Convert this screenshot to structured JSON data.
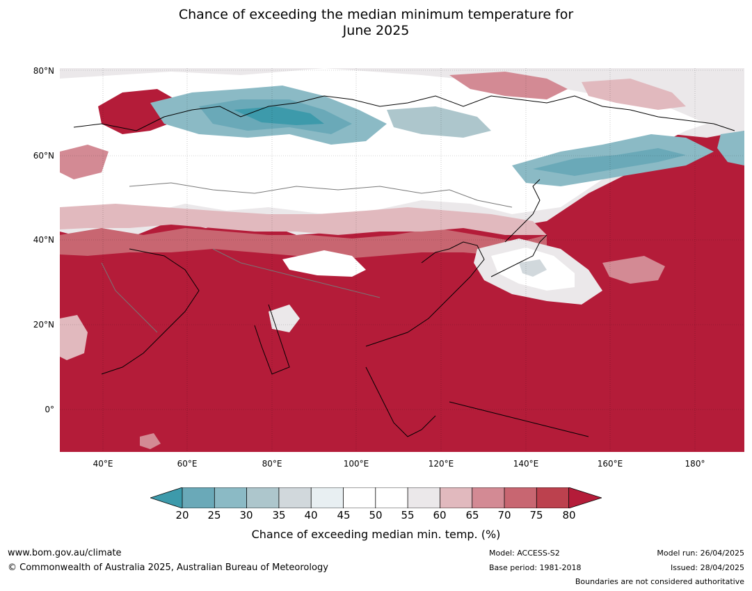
{
  "title_line1": "Chance of exceeding the median minimum temperature for",
  "title_line2": "June 2025",
  "lat_labels": [
    "80°N",
    "60°N",
    "40°N",
    "20°N",
    "0°"
  ],
  "lon_labels": [
    "40°E",
    "60°E",
    "80°E",
    "100°E",
    "120°E",
    "140°E",
    "160°E",
    "180°"
  ],
  "colorbar": {
    "ticks": [
      "20",
      "25",
      "30",
      "35",
      "40",
      "45",
      "50",
      "55",
      "60",
      "65",
      "70",
      "75",
      "80"
    ],
    "colors": {
      "below_20": "#3d9aab",
      "20_25": "#6aa9b8",
      "25_30": "#8bbac5",
      "30_35": "#adc6cc",
      "35_40": "#d1d8dc",
      "40_45": "#e8eff2",
      "45_50": "#ffffff",
      "50_55": "#ffffff",
      "55_60": "#ebe8ea",
      "60_65": "#e1b9be",
      "65_70": "#d38a94",
      "70_75": "#c86671",
      "75_80": "#bc414e",
      "above_80": "#b41c39"
    },
    "title": "Chance of exceeding median min. temp. (%)"
  },
  "footer": {
    "website": "www.bom.gov.au/climate",
    "copyright": "© Commonwealth of Australia 2025, Australian Bureau of Meteorology",
    "model": "Model: ACCESS-S2",
    "base_period": "Base period: 1981-2018",
    "model_run": "Model run: 26/04/2025",
    "issued": "Issued: 28/04/2025",
    "boundaries_note": "Boundaries are not considered authoritative"
  }
}
